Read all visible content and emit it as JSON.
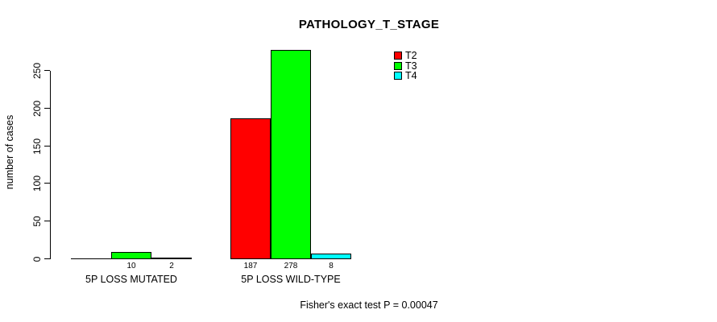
{
  "chart_data": {
    "type": "bar",
    "title": "PATHOLOGY_T_STAGE",
    "ylabel": "number of cases",
    "ylim": [
      0,
      250
    ],
    "yticks": [
      0,
      50,
      100,
      150,
      200,
      250
    ],
    "grid": false,
    "legend_position": "top-right",
    "categories": [
      "5P LOSS MUTATED",
      "5P LOSS WILD-TYPE"
    ],
    "series": [
      {
        "name": "T2",
        "color": "#ff0000",
        "values": [
          0,
          187
        ],
        "bar_labels": [
          "",
          "187"
        ]
      },
      {
        "name": "T3",
        "color": "#00ff00",
        "values": [
          10,
          278
        ],
        "bar_labels": [
          "10",
          "278"
        ]
      },
      {
        "name": "T4",
        "color": "#00ffff",
        "values": [
          2,
          8
        ],
        "bar_labels": [
          "2",
          "8"
        ]
      }
    ],
    "annotation": "Fisher's exact test P = 0.00047"
  }
}
